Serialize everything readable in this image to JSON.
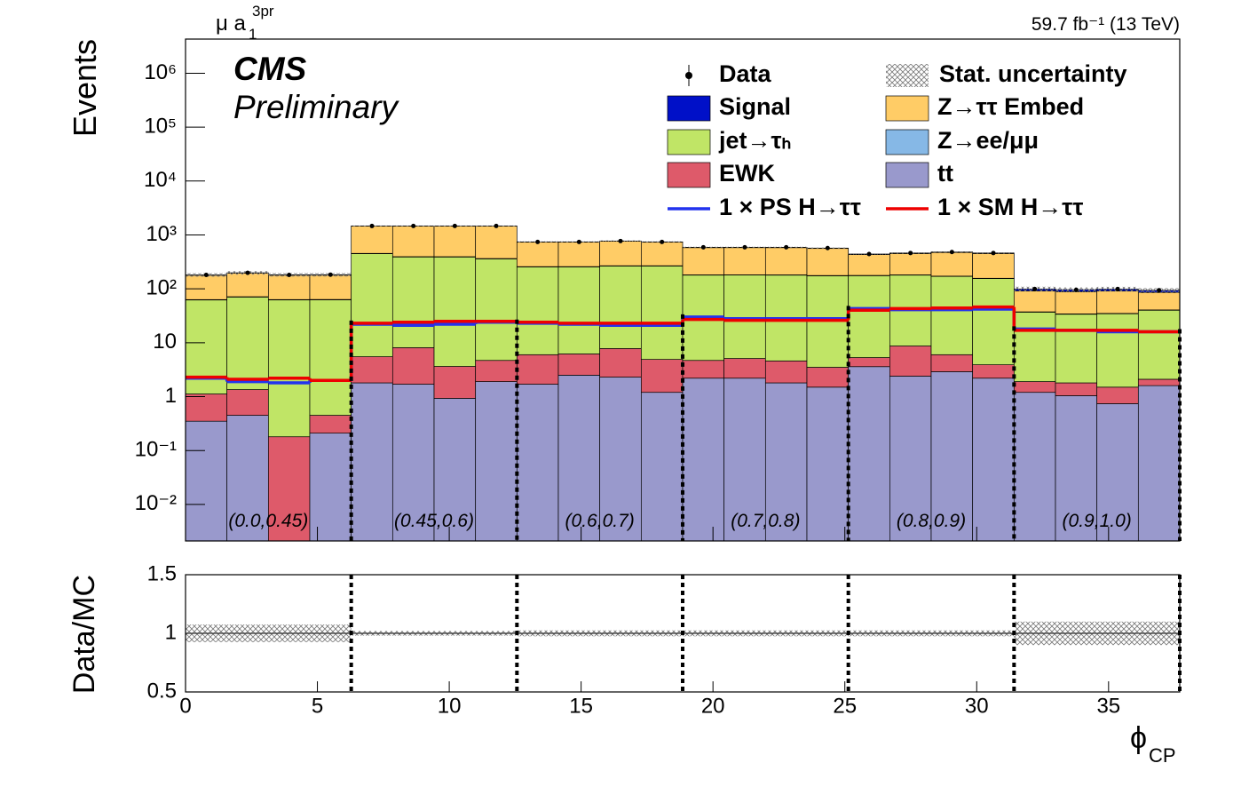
{
  "chart_data": [
    {
      "type": "stacked_histogram",
      "channel": "μ a",
      "channel_subscript": "1",
      "channel_superscript": "3pr",
      "lumi": "59.7 fb⁻¹ (13 TeV)",
      "cms_label": "CMS",
      "cms_sublabel": "Preliminary",
      "ylabel": "Events",
      "log_y": true,
      "ylim": [
        0.0021,
        4300000
      ],
      "yticks": [
        {
          "value": 1000000,
          "label": "10⁶"
        },
        {
          "value": 100000,
          "label": "10⁵"
        },
        {
          "value": 10000,
          "label": "10⁴"
        },
        {
          "value": 1000,
          "label": "10³"
        },
        {
          "value": 100,
          "label": "10²"
        },
        10,
        1,
        {
          "value": 0.1,
          "label": "10⁻¹"
        },
        {
          "value": 0.01,
          "label": "10⁻²"
        }
      ],
      "xlim": [
        0,
        37.699
      ],
      "bins": [
        0,
        1.571,
        3.142,
        4.712,
        6.283,
        7.854,
        9.425,
        10.996,
        12.566,
        14.137,
        15.708,
        17.279,
        18.85,
        20.42,
        21.991,
        23.562,
        25.133,
        26.704,
        28.274,
        29.845,
        31.416,
        32.987,
        34.558,
        36.128,
        37.699
      ],
      "section_boundaries": [
        6.283,
        12.566,
        18.85,
        25.133,
        31.416,
        37.699
      ],
      "section_labels": [
        "(0.0,0.45)",
        "(0.45,0.6)",
        "(0.6,0.7)",
        "(0.7,0.8)",
        "(0.8,0.9)",
        "(0.9,1.0)"
      ],
      "series": [
        {
          "name": "tt",
          "color": "#9999cc",
          "values": [
            0.35,
            0.45,
            0,
            0.21,
            1.8,
            1.7,
            0.93,
            1.9,
            1.7,
            2.5,
            2.3,
            1.2,
            2.2,
            2.2,
            1.8,
            1.5,
            3.6,
            2.4,
            2.9,
            2.2,
            1.2,
            1.04,
            0.74,
            1.6
          ]
        },
        {
          "name": "EWK",
          "color": "#de5a6a",
          "values": [
            0.77,
            0.9,
            0.18,
            0.24,
            3.7,
            6.4,
            2.7,
            2.8,
            4.3,
            3.7,
            5.5,
            3.7,
            2.5,
            2.9,
            2.8,
            2.0,
            1.7,
            6.3,
            3.1,
            1.7,
            0.7,
            0.76,
            0.76,
            0.5
          ]
        },
        {
          "name": "jet→τₕ",
          "color": "#c0e566",
          "values": [
            61,
            69,
            62,
            62,
            444,
            382,
            386,
            355,
            249,
            249,
            257,
            260,
            175,
            175,
            175,
            171,
            170,
            171,
            164,
            151,
            35,
            32,
            33,
            38
          ]
        },
        {
          "name": "Z→ee/μμ",
          "color": "#86b8e6",
          "values": [
            1,
            1,
            1,
            1,
            5,
            5,
            5,
            5,
            3,
            3,
            3,
            3,
            2,
            2,
            2,
            2,
            2,
            2,
            2,
            2,
            0.5,
            0.5,
            0.5,
            0.5
          ]
        },
        {
          "name": "Z→ττ Embed",
          "color": "#ffcc66",
          "values": [
            115,
            124,
            116,
            116,
            1000,
            1060,
            1060,
            1090,
            475,
            475,
            495,
            465,
            400,
            400,
            400,
            385,
            255,
            270,
            300,
            295,
            54,
            54,
            56,
            45
          ]
        },
        {
          "name": "Signal",
          "color": "#0010c8",
          "values": [
            3,
            3,
            3,
            3,
            10,
            10,
            10,
            10,
            8,
            8,
            8,
            8,
            8,
            8,
            8,
            8,
            10,
            10,
            10,
            10,
            8,
            8,
            8,
            8
          ]
        }
      ],
      "lines": [
        {
          "name": "1 × PS H→ττ",
          "color": "#2233ee",
          "values": [
            2.2,
            1.9,
            1.8,
            2.0,
            22,
            21,
            22,
            24,
            23,
            22,
            21,
            21,
            30,
            28,
            28,
            28,
            43,
            41,
            41,
            42,
            18,
            17,
            16,
            16
          ]
        },
        {
          "name": "1 × SM H→ττ",
          "color": "#ee0000",
          "values": [
            2.3,
            2.1,
            2.2,
            2.0,
            23,
            24,
            25,
            25,
            24,
            23,
            23,
            23,
            27,
            26,
            26,
            26,
            40,
            43,
            44,
            46,
            17,
            17,
            17,
            16
          ]
        }
      ],
      "data": {
        "name": "Data",
        "values": [
          181,
          198,
          181,
          183,
          1464,
          1465,
          1465,
          1465,
          741,
          741,
          771,
          741,
          590,
          590,
          590,
          570,
          442,
          462,
          482,
          462,
          99,
          96,
          99,
          94
        ]
      },
      "stat_uncertainty": {
        "name": "Stat. uncertainty"
      }
    },
    {
      "type": "ratio",
      "ylabel": "Data/MC",
      "xlabel": "ϕ",
      "xlabel_subscript": "CP",
      "ylim": [
        0.5,
        1.5
      ],
      "yticks": [
        1.5,
        1,
        0.5
      ],
      "xlim": [
        0,
        37.699
      ],
      "xticks": [
        0,
        5,
        10,
        15,
        20,
        25,
        30,
        35
      ],
      "values": [
        1,
        1,
        1,
        1,
        1,
        1,
        1,
        1,
        1,
        1,
        1,
        1,
        1,
        1,
        1,
        1,
        1,
        1,
        1,
        1,
        1,
        1,
        1,
        1
      ],
      "band": [
        0.075,
        0.075,
        0.075,
        0.075,
        0.02,
        0.02,
        0.02,
        0.02,
        0.025,
        0.025,
        0.025,
        0.025,
        0.025,
        0.025,
        0.025,
        0.025,
        0.025,
        0.025,
        0.025,
        0.025,
        0.1,
        0.1,
        0.1,
        0.1
      ]
    }
  ]
}
